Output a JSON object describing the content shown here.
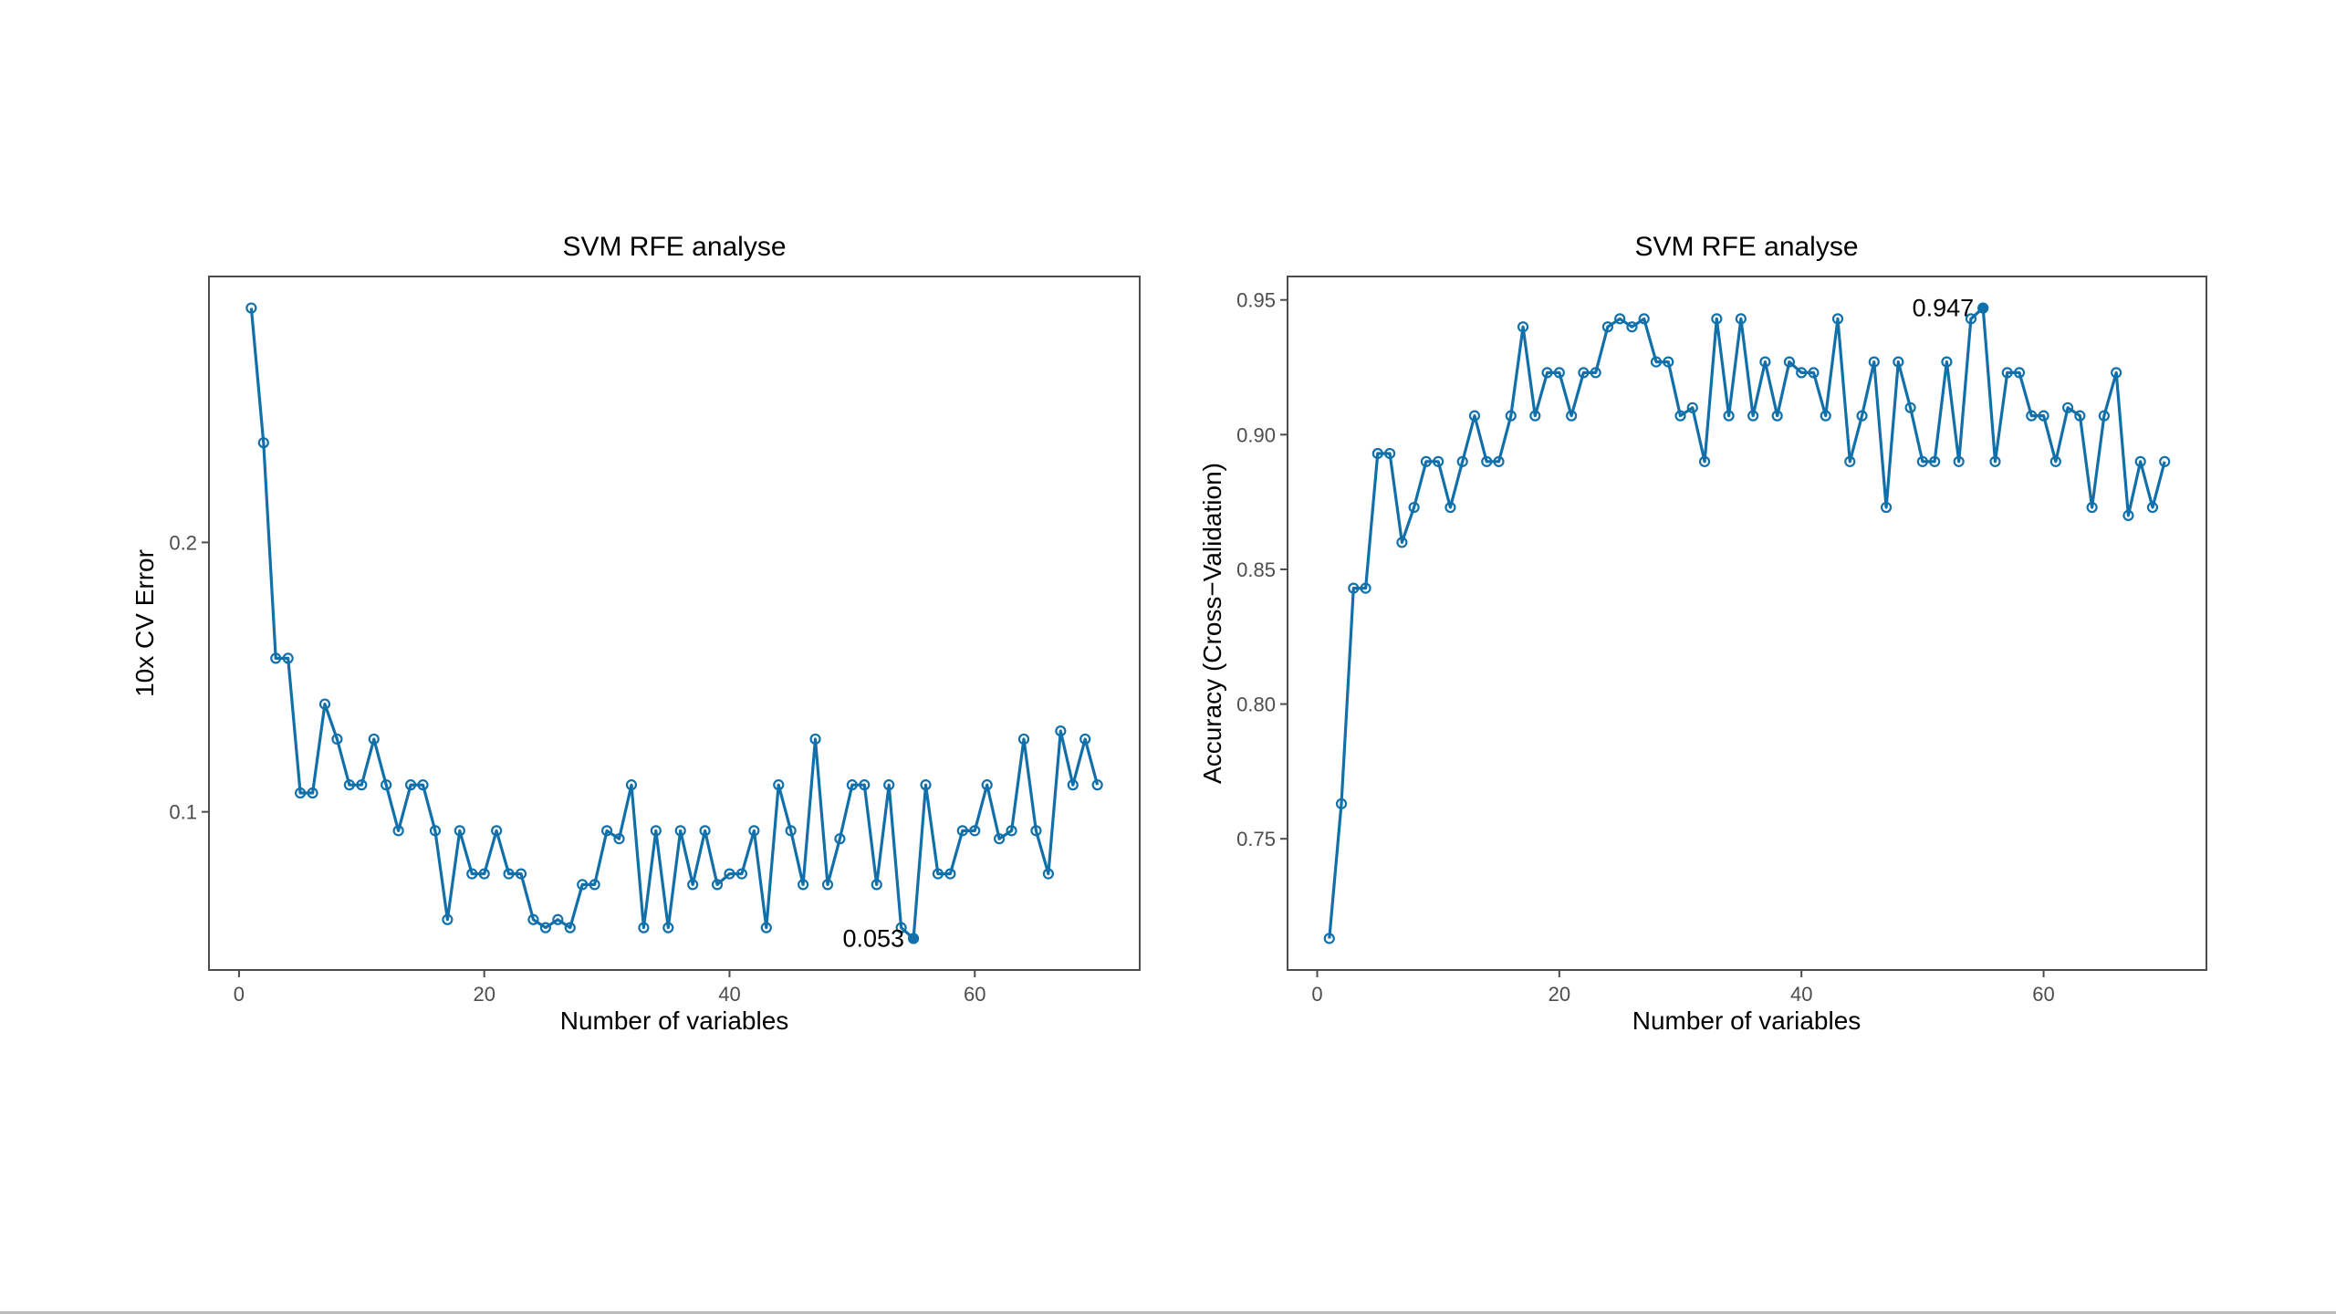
{
  "chart_data": [
    {
      "type": "line",
      "title": "SVM RFE analyse",
      "xlabel": "Number of variables",
      "ylabel": "10x CV Error",
      "xlim": [
        -2.45,
        73.45
      ],
      "ylim": [
        0.0413,
        0.2987
      ],
      "xticks": [
        0,
        20,
        40,
        60
      ],
      "xtick_labels": [
        "0",
        "20",
        "40",
        "60"
      ],
      "yticks": [
        0.1,
        0.2
      ],
      "ytick_labels": [
        "0.1",
        "0.2"
      ],
      "grid": false,
      "highlight": {
        "x": 55,
        "y": 0.053,
        "label": "0.053"
      },
      "x": [
        1,
        2,
        3,
        4,
        5,
        6,
        7,
        8,
        9,
        10,
        11,
        12,
        13,
        14,
        15,
        16,
        17,
        18,
        19,
        20,
        21,
        22,
        23,
        24,
        25,
        26,
        27,
        28,
        29,
        30,
        31,
        32,
        33,
        34,
        35,
        36,
        37,
        38,
        39,
        40,
        41,
        42,
        43,
        44,
        45,
        46,
        47,
        48,
        49,
        50,
        51,
        52,
        53,
        54,
        55,
        56,
        57,
        58,
        59,
        60,
        61,
        62,
        63,
        64,
        65,
        66,
        67,
        68,
        69,
        70
      ],
      "values": [
        0.287,
        0.237,
        0.157,
        0.157,
        0.107,
        0.107,
        0.14,
        0.127,
        0.11,
        0.11,
        0.127,
        0.11,
        0.093,
        0.11,
        0.11,
        0.093,
        0.06,
        0.093,
        0.077,
        0.077,
        0.093,
        0.077,
        0.077,
        0.06,
        0.057,
        0.06,
        0.057,
        0.073,
        0.073,
        0.093,
        0.09,
        0.11,
        0.057,
        0.093,
        0.057,
        0.093,
        0.073,
        0.093,
        0.073,
        0.077,
        0.077,
        0.093,
        0.057,
        0.11,
        0.093,
        0.073,
        0.127,
        0.073,
        0.09,
        0.11,
        0.11,
        0.073,
        0.11,
        0.057,
        0.053,
        0.11,
        0.077,
        0.077,
        0.093,
        0.093,
        0.11,
        0.09,
        0.093,
        0.127,
        0.093,
        0.077,
        0.13,
        0.11,
        0.127,
        0.11
      ]
    },
    {
      "type": "line",
      "title": "SVM RFE analyse",
      "xlabel": "Number of variables",
      "ylabel": "Accuracy (Cross−Validation)",
      "xlim": [
        -2.45,
        73.45
      ],
      "ylim": [
        0.7013,
        0.9587
      ],
      "xticks": [
        0,
        20,
        40,
        60
      ],
      "xtick_labels": [
        "0",
        "20",
        "40",
        "60"
      ],
      "yticks": [
        0.75,
        0.8,
        0.85,
        0.9,
        0.95
      ],
      "ytick_labels": [
        "0.75",
        "0.80",
        "0.85",
        "0.90",
        "0.95"
      ],
      "grid": false,
      "highlight": {
        "x": 55,
        "y": 0.947,
        "label": "0.947"
      },
      "x": [
        1,
        2,
        3,
        4,
        5,
        6,
        7,
        8,
        9,
        10,
        11,
        12,
        13,
        14,
        15,
        16,
        17,
        18,
        19,
        20,
        21,
        22,
        23,
        24,
        25,
        26,
        27,
        28,
        29,
        30,
        31,
        32,
        33,
        34,
        35,
        36,
        37,
        38,
        39,
        40,
        41,
        42,
        43,
        44,
        45,
        46,
        47,
        48,
        49,
        50,
        51,
        52,
        53,
        54,
        55,
        56,
        57,
        58,
        59,
        60,
        61,
        62,
        63,
        64,
        65,
        66,
        67,
        68,
        69,
        70
      ],
      "values": [
        0.713,
        0.763,
        0.843,
        0.843,
        0.893,
        0.893,
        0.86,
        0.873,
        0.89,
        0.89,
        0.873,
        0.89,
        0.907,
        0.89,
        0.89,
        0.907,
        0.94,
        0.907,
        0.923,
        0.923,
        0.907,
        0.923,
        0.923,
        0.94,
        0.943,
        0.94,
        0.943,
        0.927,
        0.927,
        0.907,
        0.91,
        0.89,
        0.943,
        0.907,
        0.943,
        0.907,
        0.927,
        0.907,
        0.927,
        0.923,
        0.923,
        0.907,
        0.943,
        0.89,
        0.907,
        0.927,
        0.873,
        0.927,
        0.91,
        0.89,
        0.89,
        0.927,
        0.89,
        0.943,
        0.947,
        0.89,
        0.923,
        0.923,
        0.907,
        0.907,
        0.89,
        0.91,
        0.907,
        0.873,
        0.907,
        0.923,
        0.87,
        0.89,
        0.873,
        0.89
      ]
    }
  ],
  "colors": {
    "line": "#1170aa",
    "axis": "#4d4d4d",
    "tick_text": "#4d4d4d",
    "text": "#000000"
  }
}
